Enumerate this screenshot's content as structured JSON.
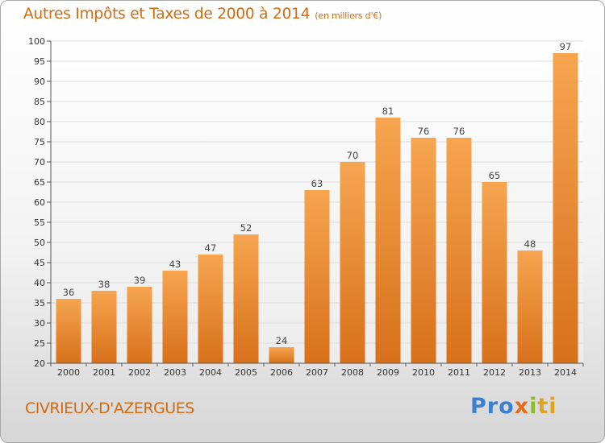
{
  "title": "Autres Impôts et Taxes de 2000 à 2014",
  "subtitle": "(en milliers d'€)",
  "town": "CIVRIEUX-D'AZERGUES",
  "logo": {
    "p1": "Pro",
    "p2": "x",
    "p3": "i",
    "p4": "ti"
  },
  "chart_data": {
    "type": "bar",
    "title": "Autres Impôts et Taxes de 2000 à 2014",
    "subtitle": "(en milliers d'€)",
    "categories": [
      "2000",
      "2001",
      "2002",
      "2003",
      "2004",
      "2005",
      "2006",
      "2007",
      "2008",
      "2009",
      "2010",
      "2011",
      "2012",
      "2013",
      "2014"
    ],
    "values": [
      36,
      38,
      39,
      43,
      47,
      52,
      24,
      63,
      70,
      81,
      76,
      76,
      65,
      48,
      97
    ],
    "ylim": [
      20,
      100
    ],
    "yticks": [
      20,
      25,
      30,
      35,
      40,
      45,
      50,
      55,
      60,
      65,
      70,
      75,
      80,
      85,
      90,
      95,
      100
    ],
    "grid": true,
    "bar_color_top": "#f6a550",
    "bar_color_bottom": "#d8701a",
    "accent_color": "#d06b12"
  }
}
